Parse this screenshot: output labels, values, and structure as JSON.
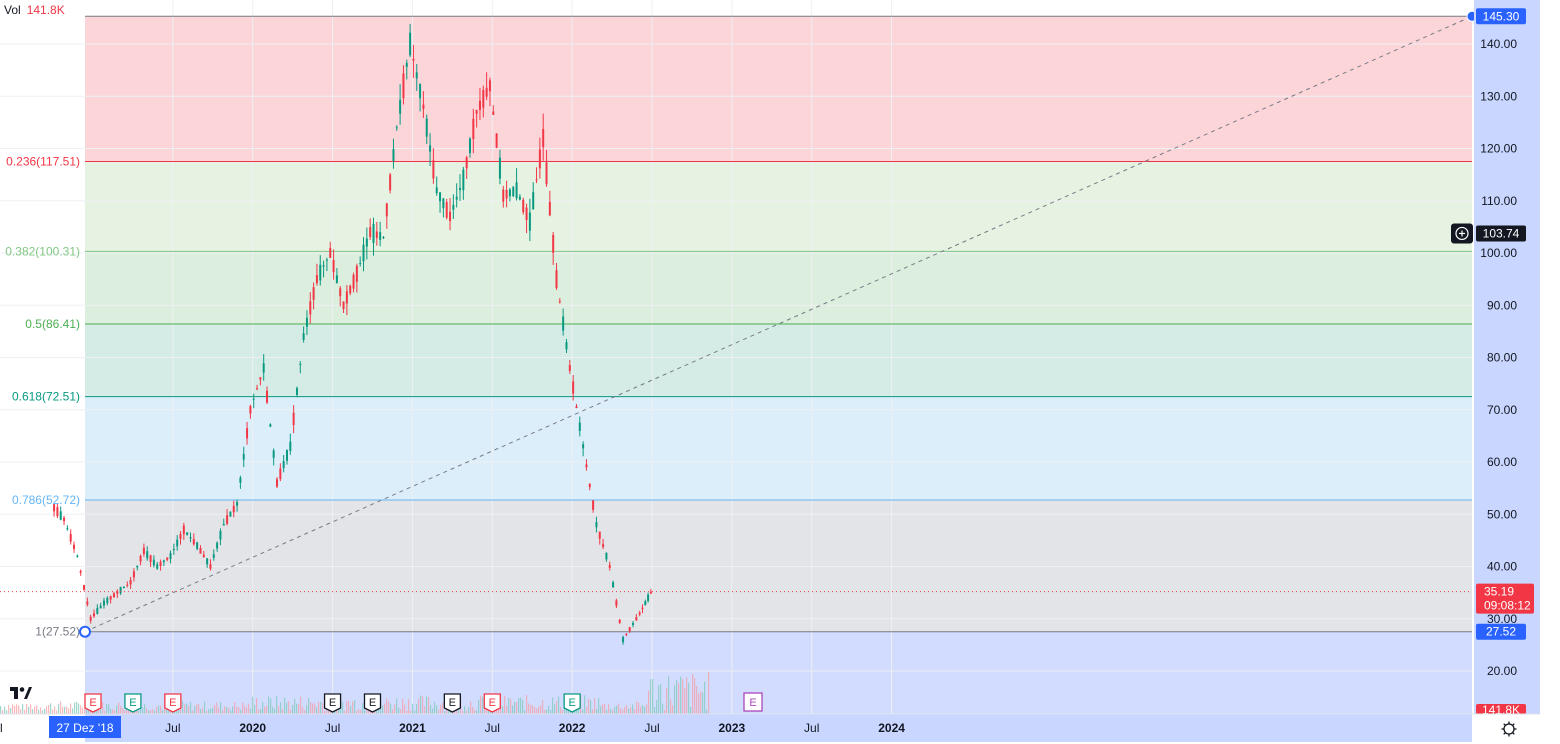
{
  "legend": {
    "label": "Vol",
    "value": "141.8K"
  },
  "axis": {
    "price_ticks": [
      "140.00",
      "130.00",
      "120.00",
      "110.00",
      "100.00",
      "90.00",
      "80.00",
      "70.00",
      "60.00",
      "50.00",
      "40.00",
      "30.00",
      "20.00"
    ],
    "time_ticks": [
      "Jul",
      "2020",
      "Jul",
      "2021",
      "Jul",
      "2022",
      "Jul",
      "2023",
      "Jul",
      "2024"
    ],
    "cursor_date": "27 Dez '18",
    "left_partial_tick": "l"
  },
  "price_badges": {
    "top": "145.30",
    "crosshair": "103.74",
    "last": "35.19",
    "countdown": "09:08:12",
    "bottom": "27.52",
    "volume": "141.8K"
  },
  "fib_levels": [
    {
      "label": "0.236(117.51)",
      "price": 117.51,
      "color": "#f23645"
    },
    {
      "label": "0.382(100.31)",
      "price": 100.31,
      "color": "#81c784"
    },
    {
      "label": "0.5(86.41)",
      "price": 86.41,
      "color": "#4caf50"
    },
    {
      "label": "0.618(72.51)",
      "price": 72.51,
      "color": "#089981"
    },
    {
      "label": "0.786(52.72)",
      "price": 52.72,
      "color": "#64b5f6"
    },
    {
      "label": "1(27.52)",
      "price": 27.52,
      "color": "#787b86"
    }
  ],
  "earnings_markers": [
    "E",
    "E",
    "E",
    "E",
    "E",
    "E",
    "E",
    "E"
  ],
  "colors": {
    "up": "#089981",
    "down": "#f23645",
    "selection": "#c9d6ff",
    "text": "#131722"
  },
  "chart_data": {
    "type": "candlestick",
    "title": "",
    "y_range": [
      15,
      148
    ],
    "fib_high": 145.3,
    "fib_low": 27.52,
    "last_price": 35.19,
    "series": [
      {
        "x": [
          "2018-10",
          "2018-11",
          "2018-12",
          "2019-01",
          "2019-02",
          "2019-03",
          "2019-04",
          "2019-05",
          "2019-06",
          "2019-07",
          "2019-08",
          "2019-09",
          "2019-10",
          "2019-11",
          "2019-12",
          "2020-01",
          "2020-02",
          "2020-03",
          "2020-04",
          "2020-05",
          "2020-06",
          "2020-07",
          "2020-08",
          "2020-09",
          "2020-10",
          "2020-11",
          "2020-12",
          "2021-01",
          "2021-02",
          "2021-03",
          "2021-04",
          "2021-05",
          "2021-06",
          "2021-07",
          "2021-08",
          "2021-09",
          "2021-10",
          "2021-11",
          "2021-12",
          "2022-01",
          "2022-02",
          "2022-03",
          "2022-04",
          "2022-05",
          "2022-06"
        ],
        "close": [
          49,
          42,
          30,
          33,
          35,
          37,
          43,
          40,
          42,
          47,
          44,
          40,
          48,
          52,
          70,
          78,
          56,
          63,
          84,
          95,
          100,
          90,
          96,
          104,
          103,
          124,
          140,
          128,
          112,
          107,
          114,
          127,
          132,
          111,
          112,
          106,
          122,
          95,
          78,
          63,
          48,
          40,
          26,
          30,
          35
        ]
      }
    ]
  }
}
